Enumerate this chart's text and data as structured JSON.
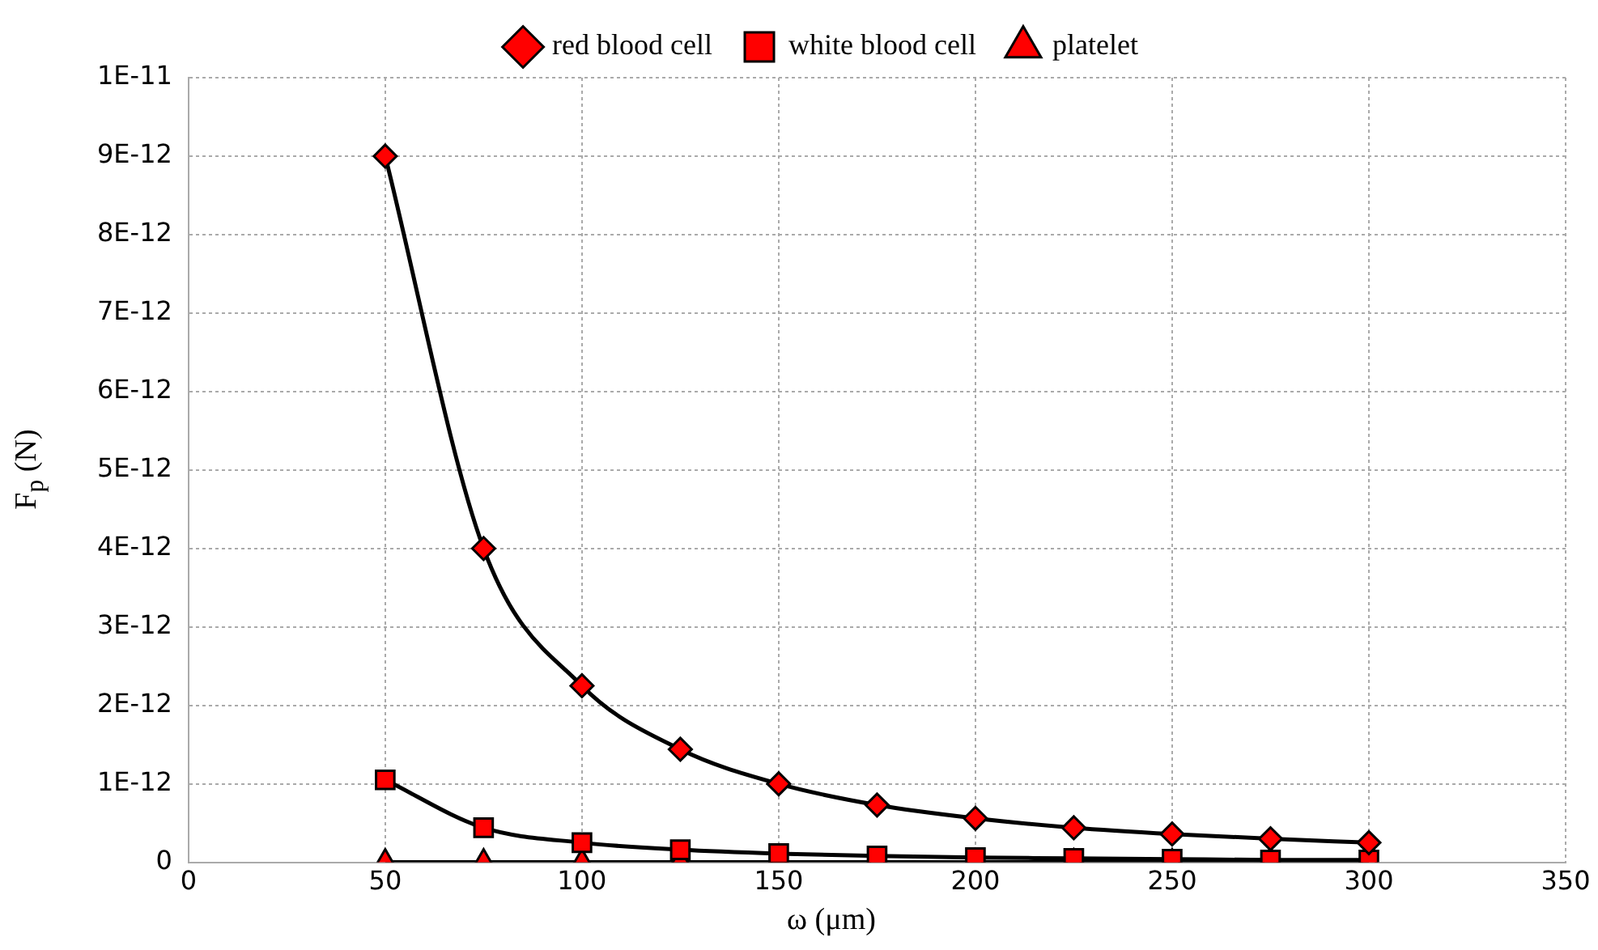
{
  "chart_data": {
    "type": "line",
    "xlabel": "ω (μm)",
    "ylabel": "F$_{p}$ (N)",
    "x": [
      50,
      75,
      100,
      125,
      150,
      175,
      200,
      225,
      250,
      275,
      300
    ],
    "series": [
      {
        "name": "red blood cell",
        "color": "#ff0000",
        "marker": "diamond",
        "values": [
          9e-12,
          4e-12,
          2.25e-12,
          1.44e-12,
          1e-12,
          7.3e-13,
          5.6e-13,
          4.4e-13,
          3.6e-13,
          3e-13,
          2.5e-13
        ]
      },
      {
        "name": "white blood cell",
        "color": "#ff0000",
        "marker": "square",
        "values": [
          1.05e-12,
          4.4e-13,
          2.5e-13,
          1.6e-13,
          1.1e-13,
          8e-14,
          6e-14,
          5e-14,
          4e-14,
          3e-14,
          3e-14
        ]
      },
      {
        "name": "platelet",
        "color": "#ff0000",
        "marker": "triangle",
        "values": [
          0,
          0,
          0,
          0,
          0,
          0,
          0,
          0,
          0,
          0,
          0
        ]
      }
    ],
    "xlim": [
      0,
      350
    ],
    "xticks": [
      0,
      50,
      100,
      150,
      200,
      250,
      300,
      350
    ],
    "ylim": [
      0,
      1e-11
    ],
    "yticks": [
      0,
      {
        "value": 1e-12,
        "label": "1E-12"
      },
      {
        "value": 2e-12,
        "label": "2E-12"
      },
      {
        "value": 3e-12,
        "label": "3E-12"
      },
      {
        "value": 4e-12,
        "label": "4E-12"
      },
      {
        "value": 5e-12,
        "label": "5E-12"
      },
      {
        "value": 6e-12,
        "label": "6E-12"
      },
      {
        "value": 7e-12,
        "label": "7E-12"
      },
      {
        "value": 8e-12,
        "label": "8E-12"
      },
      {
        "value": 9e-12,
        "label": "9E-12"
      },
      {
        "value": 1e-11,
        "label": "1E-11"
      }
    ],
    "grid": true,
    "legend": "top",
    "line_style": "solid"
  }
}
